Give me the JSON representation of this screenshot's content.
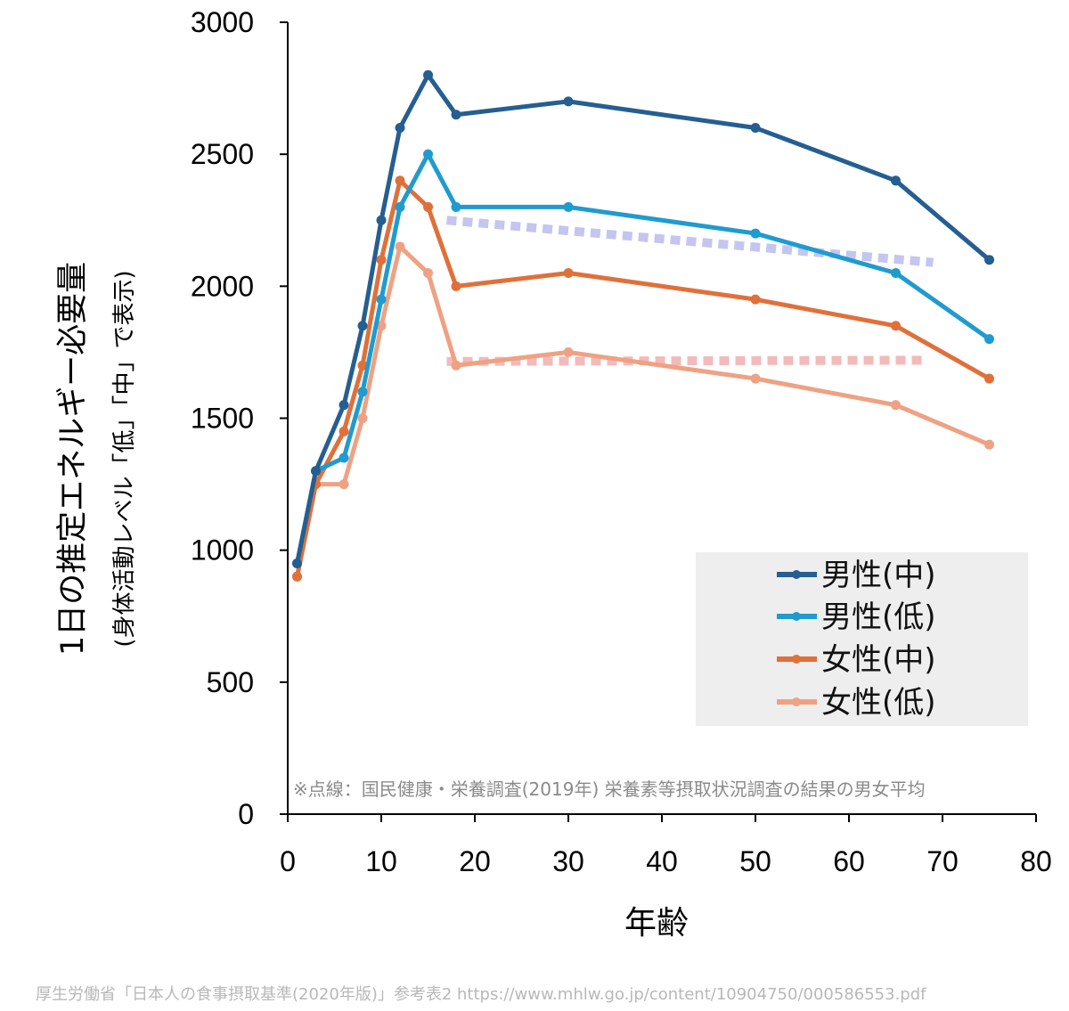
{
  "chart_data": {
    "type": "line",
    "xlabel": "年齢",
    "ylabel": "1日の推定エネルギー必要量",
    "ylabel_sub": "(身体活動レベル「低」「中」で表示)",
    "xlim": [
      0,
      80
    ],
    "ylim": [
      0,
      3000
    ],
    "xticks": [
      "0",
      "10",
      "20",
      "30",
      "40",
      "50",
      "60",
      "70",
      "80"
    ],
    "yticks": [
      "0",
      "500",
      "1000",
      "1500",
      "2000",
      "2500",
      "3000"
    ],
    "grid": false,
    "legend_position": "right",
    "note": "※点線：国民健康・栄養調査(2019年) 栄養素等摂取状況調査の結果の男女平均",
    "source": "厚生労働省「日本人の食事摂取基準(2020年版)」参考表2 https://www.mhlw.go.jp/content/10904750/000586553.pdf",
    "series": [
      {
        "name": "男性(中)",
        "color": "#255e91",
        "x": [
          1,
          3,
          6,
          8,
          10,
          12,
          15,
          18,
          30,
          50,
          65,
          75
        ],
        "y": [
          950,
          1300,
          1550,
          1850,
          2250,
          2600,
          2800,
          2650,
          2700,
          2600,
          2400,
          2100
        ]
      },
      {
        "name": "男性(低)",
        "color": "#1f9bd0",
        "x": [
          1,
          3,
          6,
          8,
          10,
          12,
          15,
          18,
          30,
          50,
          65,
          75
        ],
        "y": [
          950,
          1300,
          1350,
          1600,
          1950,
          2300,
          2500,
          2300,
          2300,
          2200,
          2050,
          1800
        ]
      },
      {
        "name": "女性(中)",
        "color": "#e0703a",
        "x": [
          1,
          3,
          6,
          8,
          10,
          12,
          15,
          18,
          30,
          50,
          65,
          75
        ],
        "y": [
          900,
          1250,
          1450,
          1700,
          2100,
          2400,
          2300,
          2000,
          2050,
          1950,
          1850,
          1650
        ]
      },
      {
        "name": "女性(低)",
        "color": "#eea283",
        "x": [
          1,
          3,
          6,
          8,
          10,
          12,
          15,
          18,
          30,
          50,
          65,
          75
        ],
        "y": [
          900,
          1250,
          1250,
          1500,
          1850,
          2150,
          2050,
          1700,
          1750,
          1650,
          1550,
          1400
        ]
      }
    ],
    "reference_lines": [
      {
        "color": "#c4c6f0",
        "x": [
          17,
          69
        ],
        "y": [
          2250,
          2090
        ]
      },
      {
        "color": "#f3baba",
        "x": [
          17,
          68
        ],
        "y": [
          1715,
          1720
        ]
      }
    ]
  }
}
